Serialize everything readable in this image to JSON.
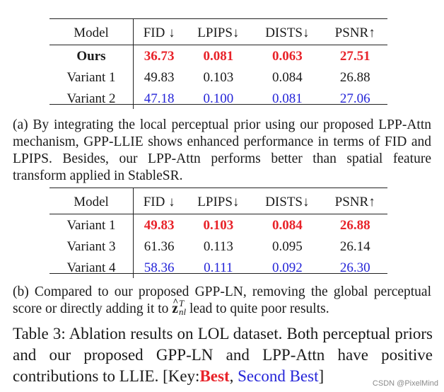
{
  "table_a": {
    "headers": [
      "Model",
      "FID ↓",
      "LPIPS↓",
      "DISTS↓",
      "PSNR↑"
    ],
    "rows": [
      {
        "model": "Ours",
        "fid": "36.73",
        "lpips": "0.081",
        "dists": "0.063",
        "psnr": "27.51",
        "rank": "best"
      },
      {
        "model": "Variant 1",
        "fid": "49.83",
        "lpips": "0.103",
        "dists": "0.084",
        "psnr": "26.88",
        "rank": "none"
      },
      {
        "model": "Variant 2",
        "fid": "47.18",
        "lpips": "0.100",
        "dists": "0.081",
        "psnr": "27.06",
        "rank": "second"
      }
    ]
  },
  "caption_a": "(a) By integrating the local perceptual prior using our proposed LPP-Attn mechanism, GPP-LLIE shows enhanced performance in terms of FID and LPIPS. Besides, our LPP-Attn performs better than spatial feature transform applied in StableSR.",
  "table_b": {
    "headers": [
      "Model",
      "FID ↓",
      "LPIPS↓",
      "DISTS↓",
      "PSNR↑"
    ],
    "rows": [
      {
        "model": "Variant 1",
        "fid": "49.83",
        "lpips": "0.103",
        "dists": "0.084",
        "psnr": "26.88",
        "rank": "best"
      },
      {
        "model": "Variant 3",
        "fid": "61.36",
        "lpips": "0.113",
        "dists": "0.095",
        "psnr": "26.14",
        "rank": "none"
      },
      {
        "model": "Variant 4",
        "fid": "58.36",
        "lpips": "0.111",
        "dists": "0.092",
        "psnr": "26.30",
        "rank": "second"
      }
    ]
  },
  "caption_b": {
    "text_before": "(b) Compared to our proposed GPP-LN, removing the global perceptual score or directly adding it to ",
    "math_base": "z",
    "math_sup": "T",
    "math_sub": "nl",
    "text_after": " lead to quite poor results."
  },
  "main_caption": {
    "text": "Table 3: Ablation results on LOL dataset. Both perceptual priors and our proposed GPP-LN and LPP-Attn have positive contributions to LLIE. [Key:",
    "key_best": "Best",
    "separator": ", ",
    "key_second": "Second Best",
    "closing": "]"
  },
  "watermark": "CSDN @PixelMind",
  "colors": {
    "best": "#e8232a",
    "second": "#2424d8"
  }
}
